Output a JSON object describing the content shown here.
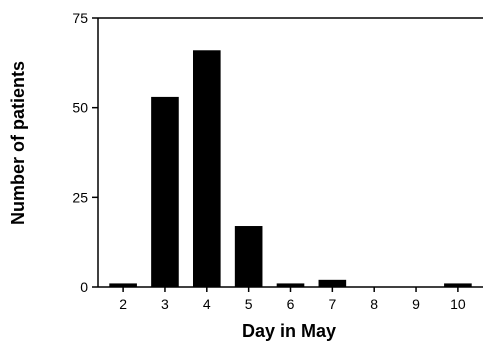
{
  "chart_data": {
    "type": "bar",
    "title": "",
    "xlabel": "Day in May",
    "ylabel": "Number of patients",
    "categories": [
      "2",
      "3",
      "4",
      "5",
      "6",
      "7",
      "8",
      "9",
      "10"
    ],
    "values": [
      1,
      53,
      66,
      17,
      1,
      2,
      0,
      0,
      1
    ],
    "ylim": [
      0,
      75
    ],
    "yticks": [
      "0",
      "25",
      "50",
      "75"
    ],
    "grid": false,
    "legend": "none",
    "bar_color": "#000000"
  }
}
